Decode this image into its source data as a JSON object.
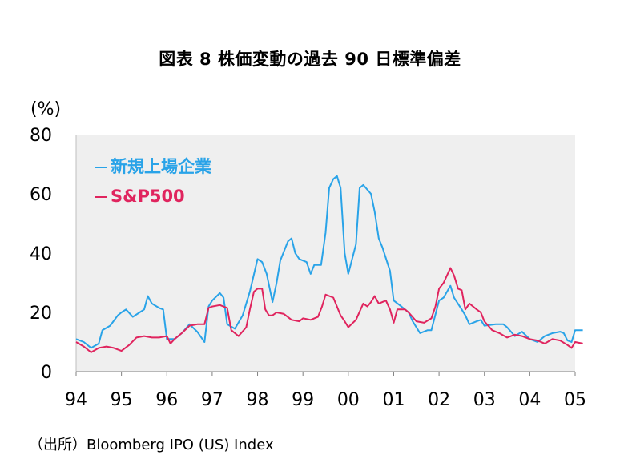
{
  "figure_title": "図表 8 株価変動の過去 90 日標準偏差",
  "source_note": "（出所）Bloomberg IPO (US) Index",
  "chart_data": {
    "type": "line",
    "title": "図表 8 株価変動の過去 90 日標準偏差",
    "ylabel": "(%)",
    "xlabel": "",
    "ylim": [
      0,
      80
    ],
    "xlim": [
      1994,
      2005
    ],
    "y_ticks": [
      "0",
      "20",
      "40",
      "60",
      "80"
    ],
    "x_ticks": [
      {
        "v": 1994,
        "label": "94"
      },
      {
        "v": 1995,
        "label": "95"
      },
      {
        "v": 1996,
        "label": "96"
      },
      {
        "v": 1997,
        "label": "97"
      },
      {
        "v": 1998,
        "label": "98"
      },
      {
        "v": 1999,
        "label": "99"
      },
      {
        "v": 2000,
        "label": "00"
      },
      {
        "v": 2001,
        "label": "01"
      },
      {
        "v": 2002,
        "label": "02"
      },
      {
        "v": 2003,
        "label": "03"
      },
      {
        "v": 2004,
        "label": "04"
      },
      {
        "v": 2005,
        "label": "05"
      }
    ],
    "grid": false,
    "plot_background": "#efefef",
    "legend_position": "top-left",
    "series": [
      {
        "name": "新規上場企業",
        "color": "#29a3e8",
        "points": [
          [
            1994.0,
            11
          ],
          [
            1994.17,
            10
          ],
          [
            1994.33,
            8
          ],
          [
            1994.5,
            9.5
          ],
          [
            1994.58,
            14
          ],
          [
            1994.75,
            15.5
          ],
          [
            1994.92,
            19
          ],
          [
            1995.0,
            20
          ],
          [
            1995.1,
            21
          ],
          [
            1995.25,
            18.5
          ],
          [
            1995.4,
            20
          ],
          [
            1995.5,
            21
          ],
          [
            1995.58,
            25.5
          ],
          [
            1995.67,
            23
          ],
          [
            1995.83,
            21.5
          ],
          [
            1995.92,
            21
          ],
          [
            1996.0,
            11
          ],
          [
            1996.17,
            11
          ],
          [
            1996.33,
            13
          ],
          [
            1996.5,
            16
          ],
          [
            1996.67,
            13.5
          ],
          [
            1996.83,
            10
          ],
          [
            1996.92,
            22
          ],
          [
            1997.0,
            24
          ],
          [
            1997.17,
            26.5
          ],
          [
            1997.25,
            25
          ],
          [
            1997.33,
            16
          ],
          [
            1997.5,
            14.5
          ],
          [
            1997.67,
            19
          ],
          [
            1997.83,
            27
          ],
          [
            1998.0,
            38
          ],
          [
            1998.1,
            37
          ],
          [
            1998.2,
            33
          ],
          [
            1998.33,
            23.5
          ],
          [
            1998.42,
            30
          ],
          [
            1998.5,
            37.5
          ],
          [
            1998.67,
            44
          ],
          [
            1998.75,
            45
          ],
          [
            1998.83,
            40
          ],
          [
            1998.92,
            38
          ],
          [
            1999.08,
            37
          ],
          [
            1999.17,
            33
          ],
          [
            1999.25,
            36
          ],
          [
            1999.4,
            36
          ],
          [
            1999.5,
            47
          ],
          [
            1999.58,
            62
          ],
          [
            1999.67,
            65
          ],
          [
            1999.75,
            66
          ],
          [
            1999.83,
            62
          ],
          [
            1999.92,
            40
          ],
          [
            2000.0,
            33
          ],
          [
            2000.17,
            43
          ],
          [
            2000.25,
            62
          ],
          [
            2000.33,
            63
          ],
          [
            2000.5,
            60
          ],
          [
            2000.58,
            54
          ],
          [
            2000.67,
            45
          ],
          [
            2000.75,
            42
          ],
          [
            2000.92,
            34
          ],
          [
            2001.0,
            24
          ],
          [
            2001.17,
            22
          ],
          [
            2001.33,
            20
          ],
          [
            2001.42,
            17
          ],
          [
            2001.58,
            13
          ],
          [
            2001.75,
            14
          ],
          [
            2001.83,
            14
          ],
          [
            2002.0,
            24
          ],
          [
            2002.1,
            25
          ],
          [
            2002.25,
            29
          ],
          [
            2002.33,
            25
          ],
          [
            2002.5,
            21
          ],
          [
            2002.58,
            19
          ],
          [
            2002.67,
            16
          ],
          [
            2002.83,
            17
          ],
          [
            2002.92,
            17.5
          ],
          [
            2003.0,
            15.5
          ],
          [
            2003.25,
            16
          ],
          [
            2003.42,
            16
          ],
          [
            2003.5,
            15
          ],
          [
            2003.67,
            12
          ],
          [
            2003.83,
            13.5
          ],
          [
            2004.0,
            11
          ],
          [
            2004.17,
            10
          ],
          [
            2004.33,
            12
          ],
          [
            2004.5,
            13
          ],
          [
            2004.67,
            13.5
          ],
          [
            2004.75,
            13
          ],
          [
            2004.83,
            10.5
          ],
          [
            2004.92,
            10
          ],
          [
            2005.0,
            14
          ],
          [
            2005.17,
            14
          ]
        ]
      },
      {
        "name": "S&P500",
        "color": "#e0245e",
        "points": [
          [
            1994.0,
            10
          ],
          [
            1994.17,
            8.5
          ],
          [
            1994.33,
            6.5
          ],
          [
            1994.5,
            8
          ],
          [
            1994.67,
            8.5
          ],
          [
            1994.83,
            8
          ],
          [
            1995.0,
            7
          ],
          [
            1995.17,
            9
          ],
          [
            1995.33,
            11.5
          ],
          [
            1995.5,
            12
          ],
          [
            1995.67,
            11.5
          ],
          [
            1995.83,
            11.5
          ],
          [
            1996.0,
            12
          ],
          [
            1996.08,
            9.5
          ],
          [
            1996.17,
            11
          ],
          [
            1996.33,
            13
          ],
          [
            1996.5,
            15.5
          ],
          [
            1996.67,
            16
          ],
          [
            1996.83,
            16
          ],
          [
            1996.92,
            21.5
          ],
          [
            1997.0,
            22
          ],
          [
            1997.17,
            22.5
          ],
          [
            1997.33,
            21.5
          ],
          [
            1997.42,
            14
          ],
          [
            1997.5,
            13
          ],
          [
            1997.58,
            12
          ],
          [
            1997.75,
            15
          ],
          [
            1997.83,
            21
          ],
          [
            1997.92,
            27
          ],
          [
            1998.0,
            28
          ],
          [
            1998.1,
            28
          ],
          [
            1998.17,
            21
          ],
          [
            1998.25,
            19
          ],
          [
            1998.33,
            19
          ],
          [
            1998.42,
            20
          ],
          [
            1998.58,
            19.5
          ],
          [
            1998.75,
            17.5
          ],
          [
            1998.92,
            17
          ],
          [
            1999.0,
            18
          ],
          [
            1999.17,
            17.5
          ],
          [
            1999.33,
            18.5
          ],
          [
            1999.42,
            22
          ],
          [
            1999.5,
            26
          ],
          [
            1999.67,
            25
          ],
          [
            1999.83,
            19
          ],
          [
            1999.92,
            17
          ],
          [
            2000.0,
            15
          ],
          [
            2000.17,
            17.5
          ],
          [
            2000.33,
            23
          ],
          [
            2000.42,
            22
          ],
          [
            2000.5,
            23.5
          ],
          [
            2000.58,
            25.5
          ],
          [
            2000.67,
            23
          ],
          [
            2000.83,
            24
          ],
          [
            2000.92,
            21
          ],
          [
            2001.0,
            16.5
          ],
          [
            2001.08,
            21
          ],
          [
            2001.25,
            21
          ],
          [
            2001.33,
            20
          ],
          [
            2001.5,
            17
          ],
          [
            2001.67,
            16.5
          ],
          [
            2001.83,
            18
          ],
          [
            2001.92,
            22
          ],
          [
            2002.0,
            28
          ],
          [
            2002.1,
            30
          ],
          [
            2002.25,
            35
          ],
          [
            2002.33,
            32.5
          ],
          [
            2002.42,
            28
          ],
          [
            2002.5,
            27.5
          ],
          [
            2002.58,
            21
          ],
          [
            2002.67,
            23
          ],
          [
            2002.83,
            21
          ],
          [
            2002.92,
            20
          ],
          [
            2003.0,
            17
          ],
          [
            2003.17,
            14
          ],
          [
            2003.33,
            13
          ],
          [
            2003.5,
            11.5
          ],
          [
            2003.67,
            12.5
          ],
          [
            2003.83,
            12
          ],
          [
            2004.0,
            11
          ],
          [
            2004.17,
            10.5
          ],
          [
            2004.33,
            9.5
          ],
          [
            2004.5,
            11
          ],
          [
            2004.67,
            10.5
          ],
          [
            2004.83,
            9
          ],
          [
            2004.92,
            8
          ],
          [
            2005.0,
            10
          ],
          [
            2005.17,
            9.5
          ]
        ]
      }
    ]
  }
}
